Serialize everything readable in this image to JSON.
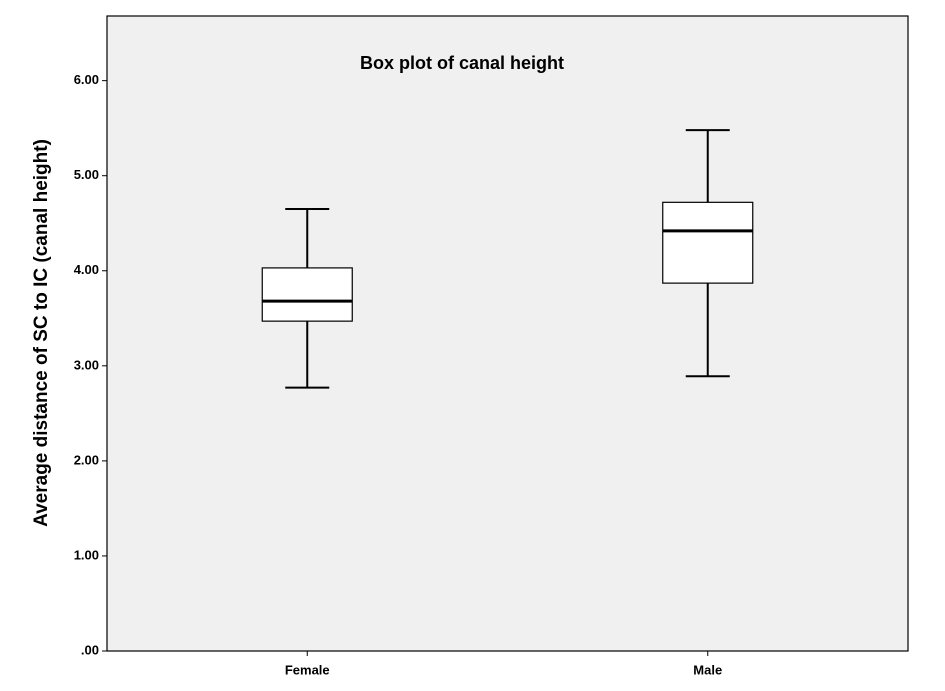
{
  "chart_data": {
    "type": "box",
    "title": "Box plot of canal height",
    "y_label": "Average distance of SC to IC (canal height)",
    "categories": [
      "Female",
      "Male"
    ],
    "boxes": [
      {
        "min": 2.77,
        "q1": 3.47,
        "median": 3.68,
        "q3": 4.03,
        "max": 4.65
      },
      {
        "min": 2.89,
        "q1": 3.87,
        "median": 4.42,
        "q3": 4.72,
        "max": 5.48
      }
    ],
    "color": "#ffffff",
    "ylim": [
      0,
      6.68
    ],
    "yticks": [
      {
        "value": 0,
        "label": ".00"
      },
      {
        "value": 1,
        "label": "1.00"
      },
      {
        "value": 2,
        "label": "2.00"
      },
      {
        "value": 3,
        "label": "3.00"
      },
      {
        "value": 4,
        "label": "4.00"
      },
      {
        "value": 5,
        "label": "5.00"
      },
      {
        "value": 6,
        "label": "6.00"
      }
    ],
    "grid": false
  }
}
